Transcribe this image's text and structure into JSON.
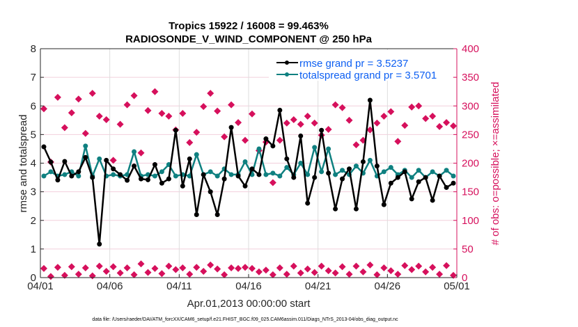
{
  "chart_data": {
    "type": "line",
    "title_line1": "Tropics 15922 / 16008 = 99.463%",
    "title_line2": "RADIOSONDE_V_WIND_COMPONENT @ 250 hPa",
    "xlabel": "Apr.01,2013 00:00:00 start",
    "ylabel": "rmse and totalspread",
    "ylabel_right": "# of obs: o=possible; ×=assimilated",
    "footer": "data file: /Users/raeder/DAI/ATM_forcXX/CAM6_setup/f.e21.FHIST_BGC.f09_025.CAM6assim.011/Diags_NTrS_2013-04/obs_diag_output.nc",
    "xlim_days": [
      0,
      30
    ],
    "ylim": [
      0,
      8
    ],
    "ylim_right": [
      0,
      400
    ],
    "xticks": [
      {
        "day": 0,
        "label": "04/01"
      },
      {
        "day": 5,
        "label": "04/06"
      },
      {
        "day": 10,
        "label": "04/11"
      },
      {
        "day": 15,
        "label": "04/16"
      },
      {
        "day": 20,
        "label": "04/21"
      },
      {
        "day": 25,
        "label": "04/26"
      },
      {
        "day": 30,
        "label": "05/01"
      }
    ],
    "yticks_left": [
      0,
      1,
      2,
      3,
      4,
      5,
      6,
      7,
      8
    ],
    "yticks_right": [
      0,
      50,
      100,
      150,
      200,
      250,
      300,
      350,
      400
    ],
    "grid": true,
    "legend_position": "top-right",
    "x_days": [
      0.25,
      0.75,
      1.25,
      1.75,
      2.25,
      2.75,
      3.25,
      3.75,
      4.25,
      4.75,
      5.25,
      5.75,
      6.25,
      6.75,
      7.25,
      7.75,
      8.25,
      8.75,
      9.25,
      9.75,
      10.25,
      10.75,
      11.25,
      11.75,
      12.25,
      12.75,
      13.25,
      13.75,
      14.25,
      14.75,
      15.25,
      15.75,
      16.25,
      16.75,
      17.25,
      17.75,
      18.25,
      18.75,
      19.25,
      19.75,
      20.25,
      20.75,
      21.25,
      21.75,
      22.25,
      22.75,
      23.25,
      23.75,
      24.25,
      24.75,
      25.25,
      25.75,
      26.25,
      26.75,
      27.25,
      27.75,
      28.25,
      28.75,
      29.25,
      29.75
    ],
    "series": [
      {
        "name": "rmse grand pr = 3.5237",
        "color": "#000000",
        "axis": "left",
        "values": [
          4.57,
          4.04,
          3.41,
          4.06,
          3.55,
          3.7,
          4.2,
          3.5,
          1.17,
          4.1,
          3.8,
          3.6,
          3.4,
          3.9,
          3.45,
          3.42,
          3.95,
          3.3,
          3.45,
          5.15,
          3.2,
          4.15,
          2.2,
          3.6,
          3.0,
          2.2,
          3.45,
          5.25,
          3.55,
          3.2,
          3.8,
          3.6,
          4.85,
          4.6,
          5.85,
          4.15,
          3.5,
          4.95,
          2.6,
          3.5,
          5.15,
          3.65,
          2.4,
          3.45,
          3.8,
          2.4,
          4.05,
          6.2,
          3.9,
          2.55,
          3.3,
          3.5,
          3.7,
          2.75,
          3.35,
          3.5,
          2.7,
          3.55,
          3.15,
          3.3
        ]
      },
      {
        "name": "totalspread grand pr = 3.5701",
        "color": "#0f8080",
        "axis": "left",
        "values": [
          3.55,
          3.7,
          3.55,
          3.6,
          3.7,
          3.55,
          4.6,
          3.55,
          4.15,
          3.55,
          3.6,
          3.55,
          3.6,
          4.4,
          3.55,
          3.6,
          3.55,
          3.7,
          3.95,
          3.55,
          3.6,
          3.55,
          4.3,
          3.6,
          3.7,
          3.55,
          3.8,
          3.6,
          3.6,
          4.05,
          3.6,
          4.5,
          3.6,
          3.65,
          3.55,
          3.85,
          3.6,
          4.0,
          3.6,
          4.55,
          3.7,
          4.5,
          3.6,
          3.75,
          3.6,
          3.9,
          3.65,
          4.1,
          3.55,
          3.7,
          3.85,
          3.6,
          3.75,
          3.5,
          3.75,
          3.5,
          3.7,
          3.55,
          3.75,
          3.55
        ]
      }
    ],
    "obs_possible": {
      "name": "possible",
      "color": "#d6105c",
      "axis": "right",
      "values": [
        295,
        202,
        315,
        262,
        288,
        312,
        252,
        322,
        282,
        276,
        205,
        268,
        302,
        318,
        218,
        292,
        325,
        287,
        282,
        258,
        287,
        236,
        254,
        299,
        322,
        291,
        246,
        302,
        271,
        240,
        286,
        222,
        237,
        166,
        240,
        270,
        276,
        268,
        282,
        270,
        249,
        259,
        302,
        297,
        275,
        232,
        240,
        258,
        270,
        282,
        290,
        238,
        266,
        298,
        300,
        278,
        282,
        264,
        271,
        265
      ]
    },
    "obs_assimilated": {
      "name": "assimilated",
      "color": "#d6105c",
      "axis": "right",
      "values": [
        16,
        2,
        18,
        4,
        19,
        6,
        17,
        3,
        20,
        11,
        19,
        8,
        17,
        5,
        24,
        9,
        16,
        7,
        20,
        14,
        17,
        6,
        18,
        11,
        22,
        15,
        5,
        17,
        16,
        18,
        16,
        10,
        13,
        5,
        17,
        6,
        20,
        8,
        15,
        9,
        20,
        12,
        8,
        19,
        6,
        20,
        10,
        22,
        5,
        17,
        12,
        6,
        21,
        14,
        20,
        10,
        18,
        6,
        21,
        4
      ]
    }
  }
}
